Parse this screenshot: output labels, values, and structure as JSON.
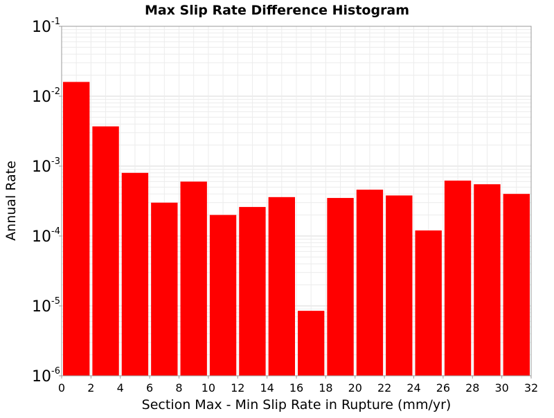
{
  "chart_data": {
    "type": "bar",
    "title": "Max Slip Rate Difference Histogram",
    "xlabel": "Section Max - Min Slip Rate in Rupture (mm/yr)",
    "ylabel": "Annual Rate",
    "y_scale": "log",
    "ylim": [
      1e-06,
      0.1
    ],
    "xlim": [
      0,
      32
    ],
    "bin_width": 2,
    "x_ticks": [
      "0",
      "2",
      "4",
      "6",
      "8",
      "10",
      "12",
      "14",
      "16",
      "18",
      "20",
      "22",
      "24",
      "26",
      "28",
      "30",
      "32"
    ],
    "y_ticks": [
      {
        "base": "10",
        "exp": "-6"
      },
      {
        "base": "10",
        "exp": "-5"
      },
      {
        "base": "10",
        "exp": "-4"
      },
      {
        "base": "10",
        "exp": "-3"
      },
      {
        "base": "10",
        "exp": "-2"
      },
      {
        "base": "10",
        "exp": "-1"
      }
    ],
    "bins": [
      {
        "x": 1,
        "value": 0.016
      },
      {
        "x": 3,
        "value": 0.0037
      },
      {
        "x": 5,
        "value": 0.0008
      },
      {
        "x": 7,
        "value": 0.0003
      },
      {
        "x": 9,
        "value": 0.0006
      },
      {
        "x": 11,
        "value": 0.0002
      },
      {
        "x": 13,
        "value": 0.00026
      },
      {
        "x": 15,
        "value": 0.00036
      },
      {
        "x": 17,
        "value": 8.5e-06
      },
      {
        "x": 19,
        "value": 0.00035
      },
      {
        "x": 21,
        "value": 0.00046
      },
      {
        "x": 23,
        "value": 0.00038
      },
      {
        "x": 25,
        "value": 0.00012
      },
      {
        "x": 27,
        "value": 0.00062
      },
      {
        "x": 29,
        "value": 0.00055
      },
      {
        "x": 31,
        "value": 0.0004
      }
    ],
    "bar_color": "#ff0000",
    "grid": true
  }
}
